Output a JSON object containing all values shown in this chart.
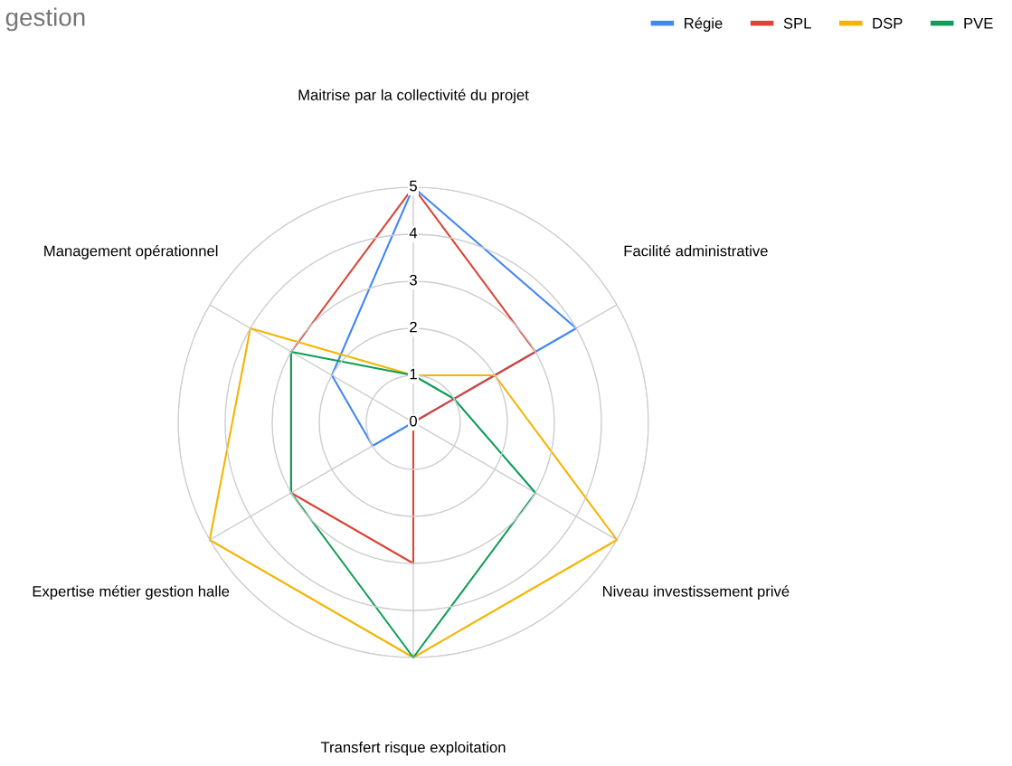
{
  "chart_data": {
    "type": "radar",
    "title": "gestion",
    "categories": [
      "Maitrise par la collectivité du projet",
      "Facilité administrative",
      "Niveau investissement privé",
      "Transfert risque exploitation",
      "Expertise métier gestion halle",
      "Management opérationnel"
    ],
    "series": [
      {
        "name": "Régie",
        "color": "#4285f4",
        "values": [
          5,
          4,
          0,
          0,
          1,
          2
        ]
      },
      {
        "name": "SPL",
        "color": "#db4437",
        "values": [
          5,
          3,
          0,
          3,
          3,
          3
        ]
      },
      {
        "name": "DSP",
        "color": "#f4b400",
        "values": [
          1,
          2,
          5,
          5,
          5,
          4
        ]
      },
      {
        "name": "PVE",
        "color": "#0f9d58",
        "values": [
          1,
          1,
          3,
          5,
          3,
          3
        ]
      }
    ],
    "ylim": [
      0,
      5
    ],
    "yticks": [
      0,
      1,
      2,
      3,
      4,
      5
    ],
    "grid": true,
    "legend": "top right"
  }
}
